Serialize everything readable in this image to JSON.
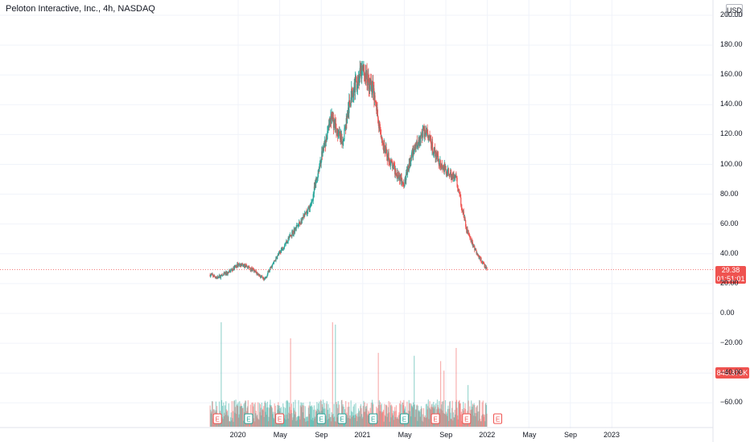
{
  "header": {
    "symbol_title": "Peloton Interactive, Inc., 4h, NASDAQ",
    "currency": "USD"
  },
  "price_tag": {
    "value": "29.38",
    "countdown": "01:51:01"
  },
  "volume_tag": {
    "value": "845.873K"
  },
  "colors": {
    "up": "#26a69a",
    "down": "#ef5350",
    "grid": "#f0f3fa",
    "axis_text": "#131722"
  },
  "chart_data": {
    "type": "candlestick",
    "y_ticks": [
      "200.00",
      "180.00",
      "160.00",
      "140.00",
      "120.00",
      "100.00",
      "80.00",
      "60.00",
      "40.00",
      "20.00",
      "0.00",
      "−20.00",
      "−40.00",
      "−60.00"
    ],
    "ylim": [
      -70,
      200
    ],
    "x_ticks": [
      "2020",
      "May",
      "Sep",
      "2021",
      "May",
      "Sep",
      "2022",
      "May",
      "Sep",
      "2023"
    ],
    "last_price": 29.38,
    "series": [
      {
        "name": "price",
        "points": [
          [
            "2019-10",
            26
          ],
          [
            "2019-11",
            24
          ],
          [
            "2019-12",
            27
          ],
          [
            "2020-01",
            33
          ],
          [
            "2020-02",
            31
          ],
          [
            "2020-03",
            26
          ],
          [
            "2020-03",
            22
          ],
          [
            "2020-04",
            29
          ],
          [
            "2020-05",
            41
          ],
          [
            "2020-06",
            52
          ],
          [
            "2020-07",
            61
          ],
          [
            "2020-08",
            72
          ],
          [
            "2020-09",
            105
          ],
          [
            "2020-10",
            132
          ],
          [
            "2020-11",
            114
          ],
          [
            "2020-12",
            150
          ],
          [
            "2021-01",
            163
          ],
          [
            "2021-02",
            150
          ],
          [
            "2021-03",
            111
          ],
          [
            "2021-04",
            97
          ],
          [
            "2021-05",
            88
          ],
          [
            "2021-06",
            112
          ],
          [
            "2021-07",
            123
          ],
          [
            "2021-08",
            106
          ],
          [
            "2021-09",
            96
          ],
          [
            "2021-10",
            90
          ],
          [
            "2021-11",
            56
          ],
          [
            "2021-12",
            40
          ],
          [
            "2022-01",
            29
          ]
        ]
      }
    ],
    "earnings_markers": [
      {
        "date": "2019-11",
        "label": "E",
        "result": "miss"
      },
      {
        "date": "2020-02",
        "label": "E",
        "result": "beat"
      },
      {
        "date": "2020-05",
        "label": "E",
        "result": "miss"
      },
      {
        "date": "2020-09",
        "label": "E",
        "result": "beat"
      },
      {
        "date": "2020-11",
        "label": "E",
        "result": "beat"
      },
      {
        "date": "2021-02",
        "label": "E",
        "result": "beat"
      },
      {
        "date": "2021-05",
        "label": "E",
        "result": "beat"
      },
      {
        "date": "2021-08",
        "label": "E",
        "result": "miss"
      },
      {
        "date": "2021-11",
        "label": "E",
        "result": "miss"
      },
      {
        "date": "2022-02",
        "label": "E",
        "result": "upcoming"
      }
    ]
  }
}
